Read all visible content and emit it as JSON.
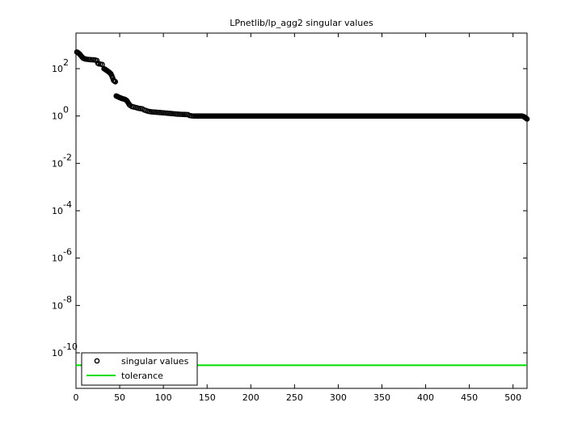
{
  "chart_data": {
    "type": "scatter",
    "title": "LPnetlib/lp_agg2 singular values",
    "xlabel": "",
    "ylabel": "",
    "xlim": [
      0,
      516
    ],
    "ylim_log10": [
      -11.5,
      3.5
    ],
    "y_scale": "log",
    "x_ticks": [
      0,
      50,
      100,
      150,
      200,
      250,
      300,
      350,
      400,
      450,
      500
    ],
    "y_tick_exponents": [
      -10,
      -8,
      -6,
      -4,
      -2,
      0,
      2
    ],
    "grid": false,
    "legend_position": "bottom-left",
    "series": [
      {
        "name": "singular values",
        "marker": "circle",
        "color": "#000000",
        "points": [
          [
            1,
            500
          ],
          [
            2,
            480
          ],
          [
            3,
            450
          ],
          [
            4,
            420
          ],
          [
            5,
            380
          ],
          [
            6,
            340
          ],
          [
            7,
            310
          ],
          [
            8,
            280
          ],
          [
            9,
            270
          ],
          [
            10,
            260
          ],
          [
            11,
            255
          ],
          [
            12,
            250
          ],
          [
            14,
            245
          ],
          [
            16,
            240
          ],
          [
            18,
            238
          ],
          [
            20,
            235
          ],
          [
            22,
            230
          ],
          [
            24,
            220
          ],
          [
            25,
            170
          ],
          [
            26,
            160
          ],
          [
            28,
            155
          ],
          [
            30,
            150
          ],
          [
            32,
            100
          ],
          [
            33,
            95
          ],
          [
            34,
            90
          ],
          [
            35,
            85
          ],
          [
            36,
            80
          ],
          [
            37,
            75
          ],
          [
            38,
            70
          ],
          [
            39,
            65
          ],
          [
            40,
            60
          ],
          [
            41,
            50
          ],
          [
            42,
            40
          ],
          [
            43,
            32
          ],
          [
            44,
            30
          ],
          [
            45,
            28
          ],
          [
            46,
            7
          ],
          [
            47,
            6.8
          ],
          [
            48,
            6.5
          ],
          [
            49,
            6.2
          ],
          [
            50,
            6
          ],
          [
            51,
            5.8
          ],
          [
            52,
            5.6
          ],
          [
            53,
            5.4
          ],
          [
            54,
            5.3
          ],
          [
            55,
            5.2
          ],
          [
            56,
            5
          ],
          [
            57,
            4.8
          ],
          [
            58,
            4.5
          ],
          [
            59,
            4
          ],
          [
            60,
            3.5
          ],
          [
            61,
            3
          ],
          [
            62,
            2.8
          ],
          [
            64,
            2.5
          ],
          [
            66,
            2.4
          ],
          [
            68,
            2.3
          ],
          [
            70,
            2.2
          ],
          [
            72,
            2.1
          ],
          [
            74,
            2.05
          ],
          [
            76,
            2
          ],
          [
            78,
            1.8
          ],
          [
            80,
            1.7
          ],
          [
            82,
            1.6
          ],
          [
            84,
            1.55
          ],
          [
            86,
            1.5
          ],
          [
            88,
            1.48
          ],
          [
            90,
            1.46
          ],
          [
            92,
            1.44
          ],
          [
            94,
            1.42
          ],
          [
            96,
            1.4
          ],
          [
            98,
            1.38
          ],
          [
            100,
            1.36
          ],
          [
            102,
            1.34
          ],
          [
            104,
            1.32
          ],
          [
            106,
            1.3
          ],
          [
            108,
            1.28
          ],
          [
            110,
            1.26
          ],
          [
            112,
            1.24
          ],
          [
            114,
            1.22
          ],
          [
            116,
            1.2
          ],
          [
            118,
            1.19
          ],
          [
            120,
            1.18
          ],
          [
            122,
            1.17
          ],
          [
            124,
            1.16
          ],
          [
            126,
            1.15
          ],
          [
            128,
            1.14
          ],
          [
            130,
            1.05
          ],
          [
            132,
            1.02
          ],
          [
            134,
            1.0
          ]
        ],
        "plateau": {
          "x_start": 136,
          "x_end": 510,
          "value": 1.0
        },
        "tail": [
          [
            511,
            0.98
          ],
          [
            512,
            0.95
          ],
          [
            513,
            0.9
          ],
          [
            514,
            0.85
          ],
          [
            515,
            0.8
          ],
          [
            516,
            0.75
          ]
        ]
      },
      {
        "name": "tolerance",
        "type": "line",
        "color": "#00dd00",
        "value": 3e-11
      }
    ]
  }
}
